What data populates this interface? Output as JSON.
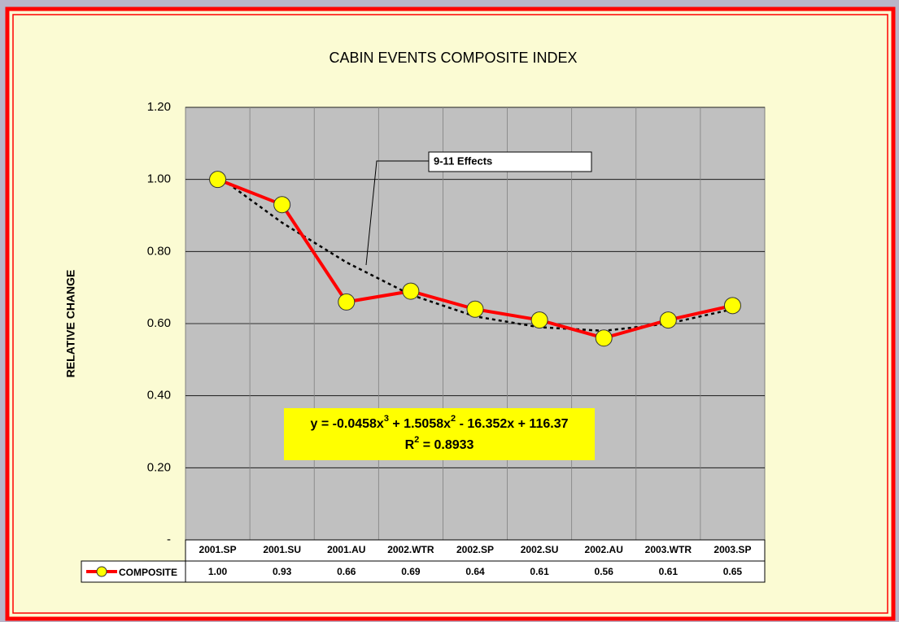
{
  "chart_data": {
    "type": "line",
    "title": "CABIN EVENTS COMPOSITE INDEX",
    "y_label": "RELATIVE CHANGE",
    "categories": [
      "2001.SP",
      "2001.SU",
      "2001.AU",
      "2002.WTR",
      "2002.SP",
      "2002.SU",
      "2002.AU",
      "2003.WTR",
      "2003.SP"
    ],
    "series": [
      {
        "name": "COMPOSITE",
        "color": "#ff0000",
        "marker_color": "#ffff00",
        "values": [
          1.0,
          0.93,
          0.66,
          0.69,
          0.64,
          0.61,
          0.56,
          0.61,
          0.65
        ],
        "value_labels": [
          "1.00",
          "0.93",
          "0.66",
          "0.69",
          "0.64",
          "0.61",
          "0.56",
          "0.61",
          "0.65"
        ]
      }
    ],
    "trendline": {
      "color": "#000000",
      "values": [
        1.01,
        0.88,
        0.77,
        0.68,
        0.62,
        0.59,
        0.58,
        0.6,
        0.64
      ]
    },
    "ylim": [
      0,
      1.2
    ],
    "yticks": [
      {
        "value": 0,
        "label": "-"
      },
      {
        "value": 0.2,
        "label": "0.20"
      },
      {
        "value": 0.4,
        "label": "0.40"
      },
      {
        "value": 0.6,
        "label": "0.60"
      },
      {
        "value": 0.8,
        "label": "0.80"
      },
      {
        "value": 1.0,
        "label": "1.00"
      },
      {
        "value": 1.2,
        "label": "1.20"
      }
    ],
    "grid": true,
    "annotations": {
      "callout": "9-11 Effects",
      "equation": [
        "y = -0.0458x",
        "3",
        " + 1.5058x",
        "2",
        " - 16.352x + 116.37"
      ],
      "r_squared": [
        "R",
        "2",
        " = 0.8933"
      ]
    }
  }
}
